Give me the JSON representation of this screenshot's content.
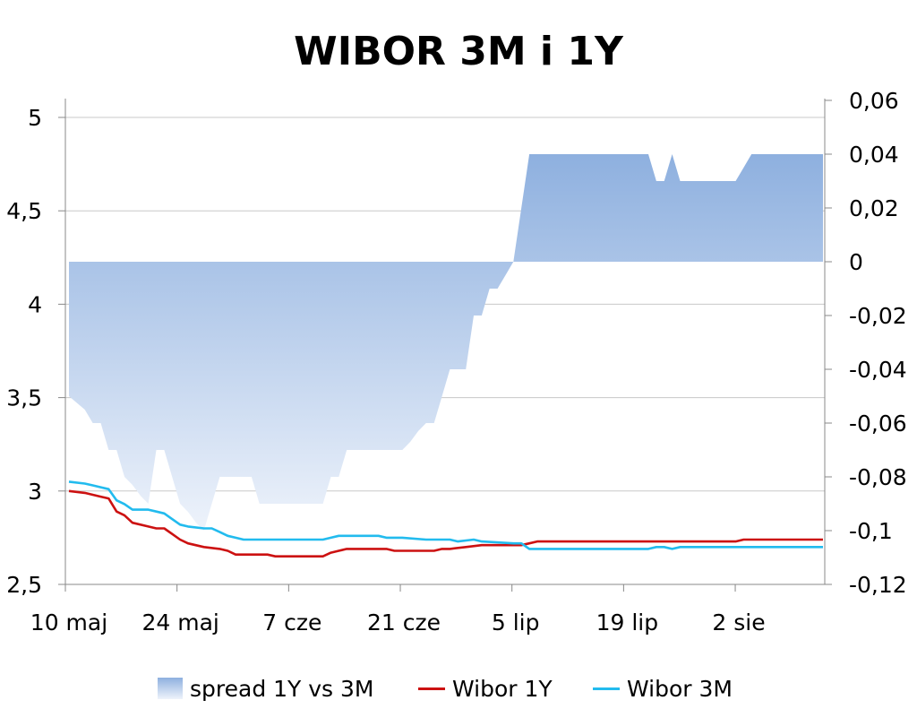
{
  "chart_data": {
    "title": "WIBOR 3M i 1Y",
    "type": "line",
    "x_tick_labels": [
      "10 maj",
      "24 maj",
      "7 cze",
      "21 cze",
      "5 lip",
      "19 lip",
      "2 sie"
    ],
    "left_axis": {
      "ticks": [
        "2,5",
        "3",
        "3,5",
        "4",
        "4,5",
        "5"
      ],
      "ylim": [
        2.5,
        5
      ]
    },
    "right_axis": {
      "ticks": [
        "-0,12",
        "-0,1",
        "-0,08",
        "-0,06",
        "-0,04",
        "-0,02",
        "0",
        "0,02",
        "0,04",
        "0,06"
      ],
      "ylim": [
        -0.12,
        0.06
      ]
    },
    "grid": true,
    "legend_position": "bottom",
    "series": [
      {
        "name": "spread 1Y vs 3M",
        "kind": "area",
        "axis": "right",
        "color_top": "#8eb0df",
        "color_bottom": "#eef3fb",
        "points": [
          [
            "10 maj",
            -0.05
          ],
          [
            "12 maj",
            -0.055
          ],
          [
            "13 maj",
            -0.06
          ],
          [
            "14 maj",
            -0.06
          ],
          [
            "15 maj",
            -0.07
          ],
          [
            "16 maj",
            -0.07
          ],
          [
            "17 maj",
            -0.08
          ],
          [
            "18 maj",
            -0.083
          ],
          [
            "19 maj",
            -0.087
          ],
          [
            "20 maj",
            -0.09
          ],
          [
            "21 maj",
            -0.07
          ],
          [
            "22 maj",
            -0.07
          ],
          [
            "23 maj",
            -0.08
          ],
          [
            "24 maj",
            -0.09
          ],
          [
            "25 maj",
            -0.093
          ],
          [
            "26 maj",
            -0.097
          ],
          [
            "27 maj",
            -0.1
          ],
          [
            "28 maj",
            -0.09
          ],
          [
            "29 maj",
            -0.08
          ],
          [
            "30 maj",
            -0.08
          ],
          [
            "31 maj",
            -0.08
          ],
          [
            "1 cze",
            -0.08
          ],
          [
            "2 cze",
            -0.08
          ],
          [
            "3 cze",
            -0.09
          ],
          [
            "4 cze",
            -0.09
          ],
          [
            "5 cze",
            -0.09
          ],
          [
            "6 cze",
            -0.09
          ],
          [
            "7 cze",
            -0.09
          ],
          [
            "8 cze",
            -0.09
          ],
          [
            "9 cze",
            -0.09
          ],
          [
            "10 cze",
            -0.09
          ],
          [
            "11 cze",
            -0.09
          ],
          [
            "12 cze",
            -0.08
          ],
          [
            "13 cze",
            -0.08
          ],
          [
            "14 cze",
            -0.07
          ],
          [
            "15 cze",
            -0.07
          ],
          [
            "16 cze",
            -0.07
          ],
          [
            "17 cze",
            -0.07
          ],
          [
            "18 cze",
            -0.07
          ],
          [
            "19 cze",
            -0.07
          ],
          [
            "20 cze",
            -0.07
          ],
          [
            "21 cze",
            -0.07
          ],
          [
            "22 cze",
            -0.067
          ],
          [
            "23 cze",
            -0.063
          ],
          [
            "24 cze",
            -0.06
          ],
          [
            "25 cze",
            -0.06
          ],
          [
            "26 cze",
            -0.05
          ],
          [
            "27 cze",
            -0.04
          ],
          [
            "28 cze",
            -0.04
          ],
          [
            "29 cze",
            -0.04
          ],
          [
            "30 cze",
            -0.02
          ],
          [
            "1 lip",
            -0.02
          ],
          [
            "2 lip",
            -0.01
          ],
          [
            "3 lip",
            -0.01
          ],
          [
            "4 lip",
            -0.005
          ],
          [
            "5 lip",
            0
          ],
          [
            "6 lip",
            0.02
          ],
          [
            "7 lip",
            0.04
          ],
          [
            "8 lip",
            0.04
          ],
          [
            "9 lip",
            0.04
          ],
          [
            "10 lip",
            0.04
          ],
          [
            "11 lip",
            0.04
          ],
          [
            "12 lip",
            0.04
          ],
          [
            "13 lip",
            0.04
          ],
          [
            "14 lip",
            0.04
          ],
          [
            "15 lip",
            0.04
          ],
          [
            "16 lip",
            0.04
          ],
          [
            "17 lip",
            0.04
          ],
          [
            "18 lip",
            0.04
          ],
          [
            "19 lip",
            0.04
          ],
          [
            "20 lip",
            0.04
          ],
          [
            "21 lip",
            0.04
          ],
          [
            "22 lip",
            0.04
          ],
          [
            "23 lip",
            0.03
          ],
          [
            "24 lip",
            0.03
          ],
          [
            "25 lip",
            0.04
          ],
          [
            "26 lip",
            0.03
          ],
          [
            "27 lip",
            0.03
          ],
          [
            "28 lip",
            0.03
          ],
          [
            "29 lip",
            0.03
          ],
          [
            "30 lip",
            0.03
          ],
          [
            "31 lip",
            0.03
          ],
          [
            "1 sie",
            0.03
          ],
          [
            "2 sie",
            0.03
          ],
          [
            "3 sie",
            0.035
          ],
          [
            "4 sie",
            0.04
          ],
          [
            "5 sie",
            0.04
          ],
          [
            "6 sie",
            0.04
          ],
          [
            "7 sie",
            0.04
          ],
          [
            "8 sie",
            0.04
          ],
          [
            "9 sie",
            0.04
          ],
          [
            "10 sie",
            0.04
          ],
          [
            "11 sie",
            0.04
          ],
          [
            "12 sie",
            0.04
          ],
          [
            "13 sie",
            0.04
          ]
        ]
      },
      {
        "name": "Wibor 1Y",
        "kind": "line",
        "axis": "left",
        "color": "#cc1111",
        "points": [
          [
            "10 maj",
            3.0
          ],
          [
            "12 maj",
            2.99
          ],
          [
            "13 maj",
            2.98
          ],
          [
            "14 maj",
            2.97
          ],
          [
            "15 maj",
            2.96
          ],
          [
            "16 maj",
            2.89
          ],
          [
            "17 maj",
            2.87
          ],
          [
            "18 maj",
            2.83
          ],
          [
            "20 maj",
            2.81
          ],
          [
            "21 maj",
            2.8
          ],
          [
            "22 maj",
            2.8
          ],
          [
            "23 maj",
            2.77
          ],
          [
            "24 maj",
            2.74
          ],
          [
            "25 maj",
            2.72
          ],
          [
            "27 maj",
            2.7
          ],
          [
            "29 maj",
            2.69
          ],
          [
            "30 maj",
            2.68
          ],
          [
            "31 maj",
            2.66
          ],
          [
            "3 cze",
            2.66
          ],
          [
            "4 cze",
            2.66
          ],
          [
            "5 cze",
            2.65
          ],
          [
            "7 cze",
            2.65
          ],
          [
            "10 cze",
            2.65
          ],
          [
            "11 cze",
            2.65
          ],
          [
            "12 cze",
            2.67
          ],
          [
            "13 cze",
            2.68
          ],
          [
            "14 cze",
            2.69
          ],
          [
            "17 cze",
            2.69
          ],
          [
            "18 cze",
            2.69
          ],
          [
            "19 cze",
            2.69
          ],
          [
            "20 cze",
            2.68
          ],
          [
            "25 cze",
            2.68
          ],
          [
            "26 cze",
            2.69
          ],
          [
            "27 cze",
            2.69
          ],
          [
            "29 cze",
            2.7
          ],
          [
            "1 lip",
            2.71
          ],
          [
            "5 lip",
            2.71
          ],
          [
            "6 lip",
            2.71
          ],
          [
            "7 lip",
            2.72
          ],
          [
            "8 lip",
            2.73
          ],
          [
            "12 lip",
            2.73
          ],
          [
            "19 lip",
            2.73
          ],
          [
            "26 lip",
            2.73
          ],
          [
            "2 sie",
            2.73
          ],
          [
            "3 sie",
            2.74
          ],
          [
            "13 sie",
            2.74
          ]
        ]
      },
      {
        "name": "Wibor 3M",
        "kind": "line",
        "axis": "left",
        "color": "#22bbee",
        "points": [
          [
            "10 maj",
            3.05
          ],
          [
            "12 maj",
            3.04
          ],
          [
            "13 maj",
            3.03
          ],
          [
            "14 maj",
            3.02
          ],
          [
            "15 maj",
            3.01
          ],
          [
            "16 maj",
            2.95
          ],
          [
            "17 maj",
            2.93
          ],
          [
            "18 maj",
            2.9
          ],
          [
            "20 maj",
            2.9
          ],
          [
            "21 maj",
            2.89
          ],
          [
            "22 maj",
            2.88
          ],
          [
            "23 maj",
            2.85
          ],
          [
            "24 maj",
            2.82
          ],
          [
            "25 maj",
            2.81
          ],
          [
            "27 maj",
            2.8
          ],
          [
            "28 maj",
            2.8
          ],
          [
            "29 maj",
            2.78
          ],
          [
            "30 maj",
            2.76
          ],
          [
            "31 maj",
            2.75
          ],
          [
            "1 cze",
            2.74
          ],
          [
            "7 cze",
            2.74
          ],
          [
            "11 cze",
            2.74
          ],
          [
            "12 cze",
            2.75
          ],
          [
            "13 cze",
            2.76
          ],
          [
            "18 cze",
            2.76
          ],
          [
            "19 cze",
            2.75
          ],
          [
            "21 cze",
            2.75
          ],
          [
            "24 cze",
            2.74
          ],
          [
            "27 cze",
            2.74
          ],
          [
            "28 cze",
            2.73
          ],
          [
            "30 cze",
            2.74
          ],
          [
            "1 lip",
            2.73
          ],
          [
            "5 lip",
            2.72
          ],
          [
            "6 lip",
            2.72
          ],
          [
            "7 lip",
            2.69
          ],
          [
            "12 lip",
            2.69
          ],
          [
            "19 lip",
            2.69
          ],
          [
            "22 lip",
            2.69
          ],
          [
            "23 lip",
            2.7
          ],
          [
            "24 lip",
            2.7
          ],
          [
            "25 lip",
            2.69
          ],
          [
            "26 lip",
            2.7
          ],
          [
            "2 sie",
            2.7
          ],
          [
            "13 sie",
            2.7
          ]
        ]
      }
    ]
  }
}
